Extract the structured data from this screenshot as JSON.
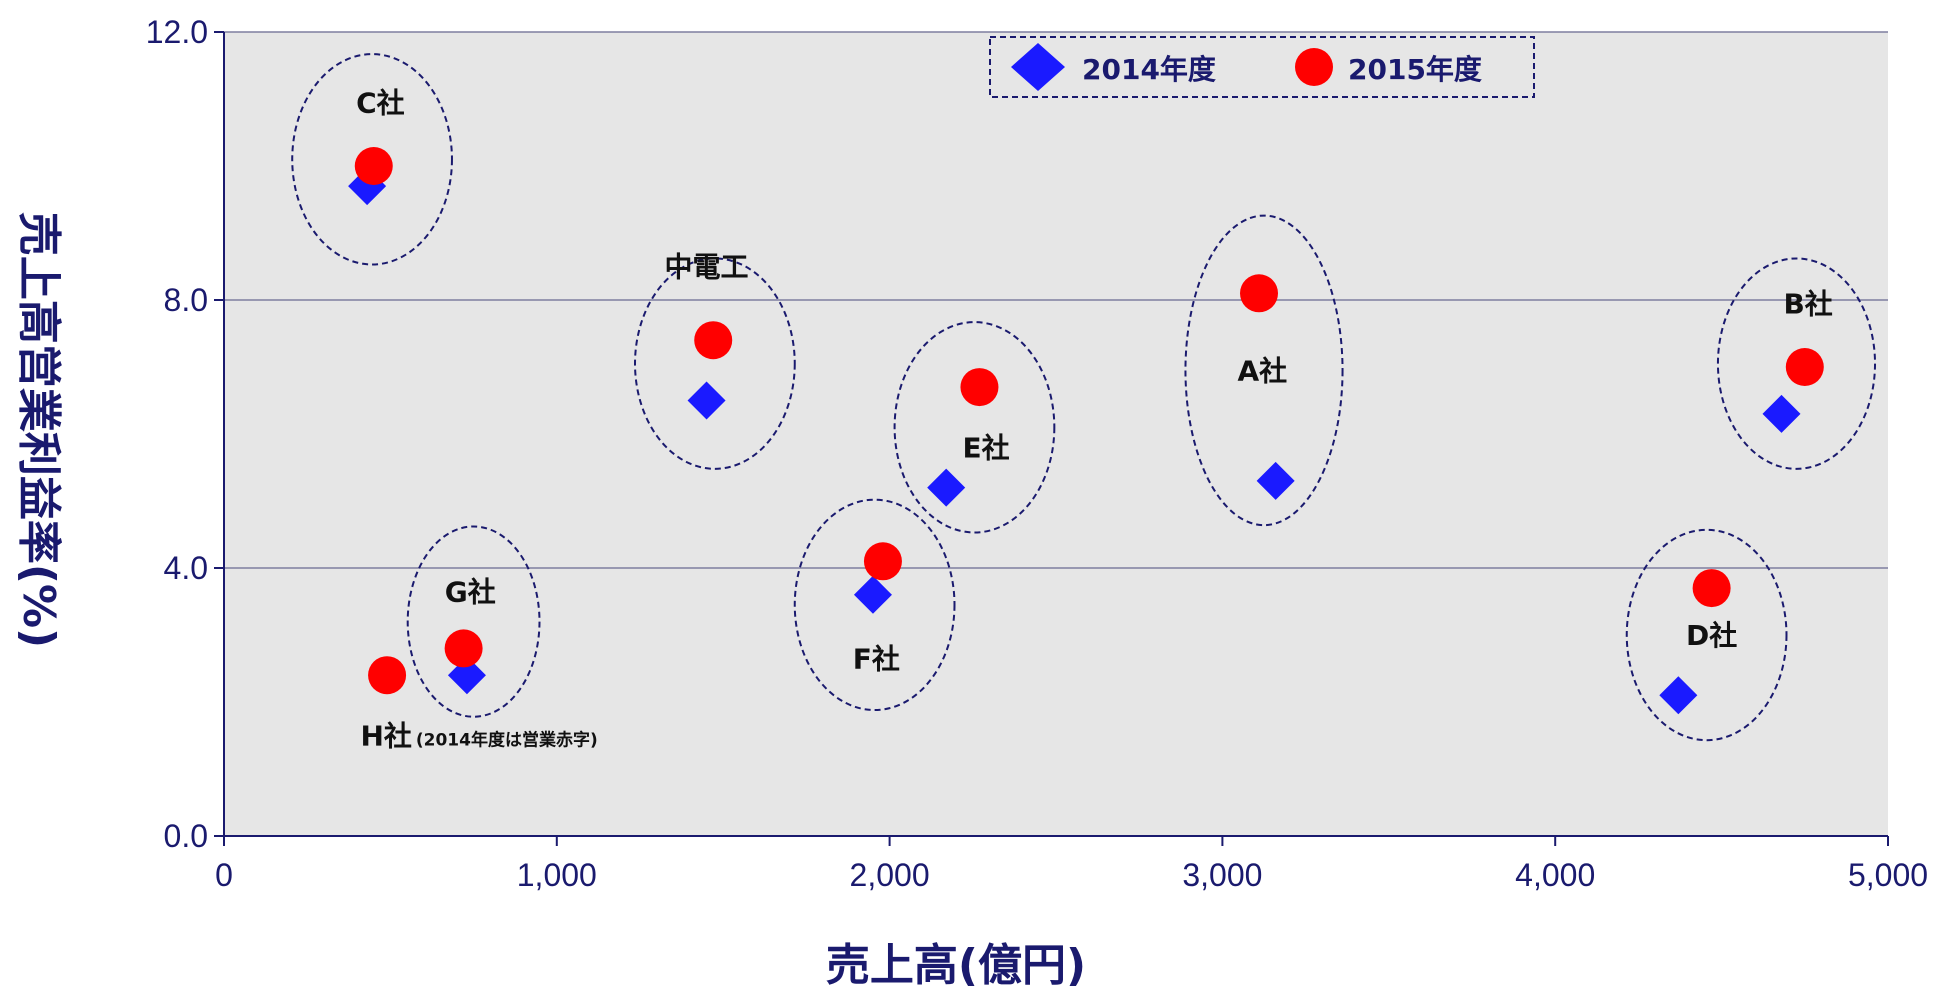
{
  "colors": {
    "plot_bg": "#e6e6e6",
    "grid": "#7f7f9f",
    "axis_text": "#1a1a6e",
    "series_2014": "#1a1aff",
    "series_2015": "#ff0000",
    "highlight_label": "#ff0000",
    "ellipse": "#1a1a6e"
  },
  "chart_data": {
    "type": "scatter",
    "xlabel": "売上高(億円)",
    "ylabel": "売上高営業利益率(%)",
    "xlim": [
      0,
      5000
    ],
    "ylim": [
      0,
      12
    ],
    "x_ticks": [
      0,
      1000,
      2000,
      3000,
      4000,
      5000
    ],
    "x_tick_labels": [
      "0",
      "1,000",
      "2,000",
      "3,000",
      "4,000",
      "5,000"
    ],
    "y_ticks": [
      0,
      4,
      8,
      12
    ],
    "y_tick_labels": [
      "0.0",
      "4.0",
      "8.0",
      "12.0"
    ],
    "grid": "horizontal",
    "legend_position": "top-center",
    "series": [
      {
        "name": "2014年度",
        "marker": "diamond",
        "color": "#1a1aff",
        "points": [
          {
            "company": "C社",
            "x": 430,
            "y": 9.7
          },
          {
            "company": "中電工",
            "x": 1450,
            "y": 6.5
          },
          {
            "company": "G社",
            "x": 730,
            "y": 2.4
          },
          {
            "company": "F社",
            "x": 1950,
            "y": 3.6
          },
          {
            "company": "E社",
            "x": 2170,
            "y": 5.2
          },
          {
            "company": "A社",
            "x": 3160,
            "y": 5.3
          },
          {
            "company": "B社",
            "x": 4680,
            "y": 6.3
          },
          {
            "company": "D社",
            "x": 4370,
            "y": 2.1
          }
        ]
      },
      {
        "name": "2015年度",
        "marker": "circle",
        "color": "#ff0000",
        "points": [
          {
            "company": "C社",
            "x": 450,
            "y": 10.0
          },
          {
            "company": "中電工",
            "x": 1470,
            "y": 7.4
          },
          {
            "company": "G社",
            "x": 720,
            "y": 2.8
          },
          {
            "company": "H社",
            "x": 490,
            "y": 2.4
          },
          {
            "company": "F社",
            "x": 1980,
            "y": 4.1
          },
          {
            "company": "E社",
            "x": 2270,
            "y": 6.7
          },
          {
            "company": "A社",
            "x": 3110,
            "y": 8.1
          },
          {
            "company": "B社",
            "x": 4750,
            "y": 7.0
          },
          {
            "company": "D社",
            "x": 4470,
            "y": 3.7
          }
        ]
      }
    ],
    "annotations": [
      {
        "id": "c",
        "text": "C社",
        "x": 470,
        "y": 10.8,
        "highlight": false
      },
      {
        "id": "chudenko",
        "text": "中電工",
        "x": 1450,
        "y": 8.35,
        "highlight": true
      },
      {
        "id": "g",
        "text": "G社",
        "x": 740,
        "y": 3.5,
        "highlight": false
      },
      {
        "id": "h",
        "text": "H社",
        "note": "(2014年度は営業赤字)",
        "x": 410,
        "y": 1.35,
        "highlight": false
      },
      {
        "id": "f",
        "text": "F社",
        "x": 1960,
        "y": 2.5,
        "highlight": false
      },
      {
        "id": "e",
        "text": "E社",
        "x": 2290,
        "y": 5.65,
        "highlight": false
      },
      {
        "id": "a",
        "text": "A社",
        "x": 3120,
        "y": 6.8,
        "highlight": false
      },
      {
        "id": "b",
        "text": "B社",
        "x": 4760,
        "y": 7.8,
        "highlight": false
      },
      {
        "id": "d",
        "text": "D社",
        "x": 4470,
        "y": 2.85,
        "highlight": false
      }
    ],
    "group_ellipses": [
      {
        "company": "C社",
        "cx": 445,
        "cy": 10.1,
        "rx": 240,
        "ry": 1.57
      },
      {
        "company": "中電工",
        "cx": 1475,
        "cy": 7.05,
        "rx": 240,
        "ry": 1.57
      },
      {
        "company": "G社",
        "cx": 750,
        "cy": 3.2,
        "rx": 198,
        "ry": 1.42
      },
      {
        "company": "F社",
        "cx": 1955,
        "cy": 3.45,
        "rx": 240,
        "ry": 1.57
      },
      {
        "company": "E社",
        "cx": 2255,
        "cy": 6.1,
        "rx": 240,
        "ry": 1.57
      },
      {
        "company": "A社",
        "cx": 3125,
        "cy": 6.95,
        "rx": 236,
        "ry": 2.31
      },
      {
        "company": "B社",
        "cx": 4725,
        "cy": 7.05,
        "rx": 236,
        "ry": 1.57
      },
      {
        "company": "D社",
        "cx": 4455,
        "cy": 3.0,
        "rx": 240,
        "ry": 1.57
      }
    ]
  }
}
